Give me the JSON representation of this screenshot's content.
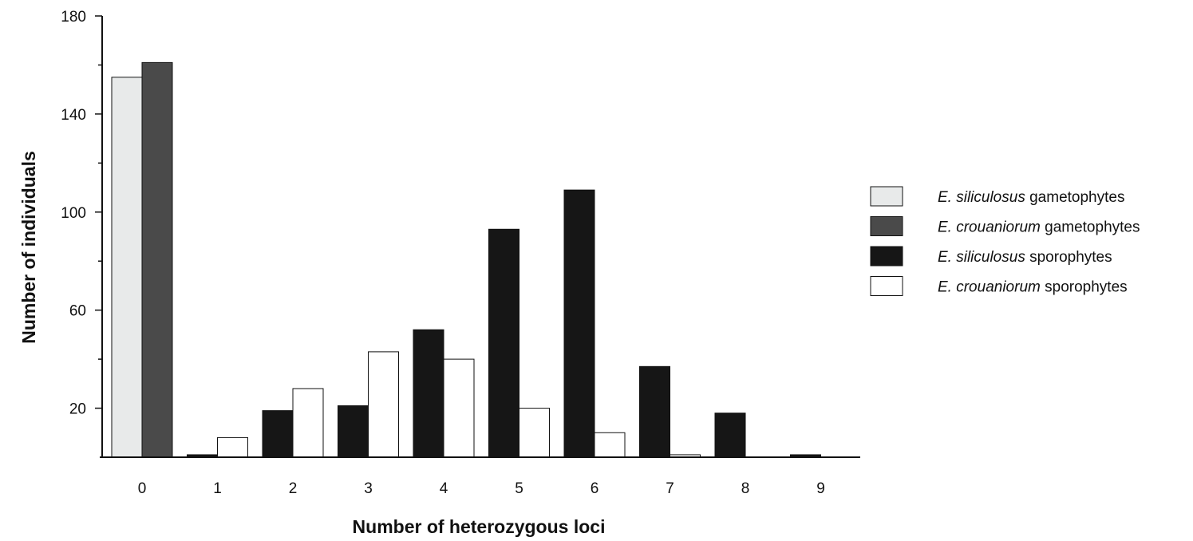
{
  "chart_data": {
    "type": "bar",
    "xlabel": "Number of heterozygous loci",
    "ylabel": "Number of individuals",
    "categories": [
      "0",
      "1",
      "2",
      "3",
      "4",
      "5",
      "6",
      "7",
      "8",
      "9"
    ],
    "y_tick_labels": [
      "20",
      "60",
      "100",
      "140",
      "180"
    ],
    "ylim": [
      0,
      180
    ],
    "legend_position": "right",
    "grid": false,
    "series": [
      {
        "legend": {
          "italic": "E. siliculosus",
          "plain": " gametophytes"
        },
        "color": "#e8eaea",
        "values": [
          155,
          0,
          0,
          0,
          0,
          0,
          0,
          0,
          0,
          0
        ]
      },
      {
        "legend": {
          "italic": "E. crouaniorum",
          "plain": " gametophytes"
        },
        "color": "#4a4a4a",
        "values": [
          161,
          0,
          0,
          0,
          0,
          0,
          0,
          0,
          0,
          0
        ]
      },
      {
        "legend": {
          "italic": "E. siliculosus",
          "plain": " sporophytes"
        },
        "color": "#161616",
        "values": [
          0,
          1,
          19,
          21,
          52,
          93,
          109,
          37,
          18,
          1
        ]
      },
      {
        "legend": {
          "italic": "E. crouaniorum",
          "plain": " sporophytes"
        },
        "color": "#ffffff",
        "values": [
          0,
          8,
          28,
          43,
          40,
          20,
          10,
          1,
          0,
          0
        ]
      }
    ]
  }
}
